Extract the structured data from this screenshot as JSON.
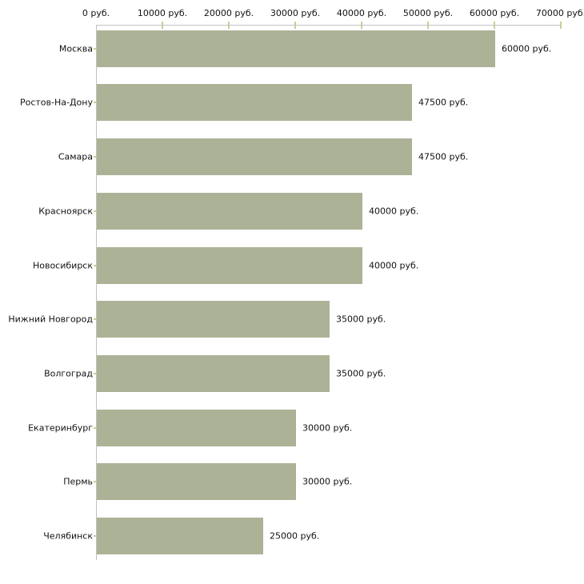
{
  "colors": {
    "bar": "#acb296",
    "axis_line": "#c1c1c1",
    "tick": "#c8cc9e",
    "text": "#111111",
    "background": "#ffffff"
  },
  "chart_data": {
    "type": "bar",
    "orientation": "horizontal",
    "title": "",
    "xlabel": "",
    "ylabel": "",
    "xlim": [
      0,
      70000
    ],
    "x_tick_step": 10000,
    "grid": false,
    "legend": false,
    "x_tick_labels": [
      "0 руб.",
      "10000 руб.",
      "20000 руб.",
      "30000 руб.",
      "40000 руб.",
      "50000 руб.",
      "60000 руб.",
      "70000 руб."
    ],
    "categories": [
      "Москва",
      "Ростов-На-Дону",
      "Самара",
      "Красноярск",
      "Новосибирск",
      "Нижний Новгород",
      "Волгоград",
      "Екатеринбург",
      "Пермь",
      "Челябинск"
    ],
    "values": [
      60000,
      47500,
      47500,
      40000,
      40000,
      35000,
      35000,
      30000,
      30000,
      25000
    ],
    "value_labels": [
      "60000 руб.",
      "47500 руб.",
      "47500 руб.",
      "40000 руб.",
      "40000 руб.",
      "35000 руб.",
      "35000 руб.",
      "30000 руб.",
      "30000 руб.",
      "25000 руб."
    ]
  }
}
